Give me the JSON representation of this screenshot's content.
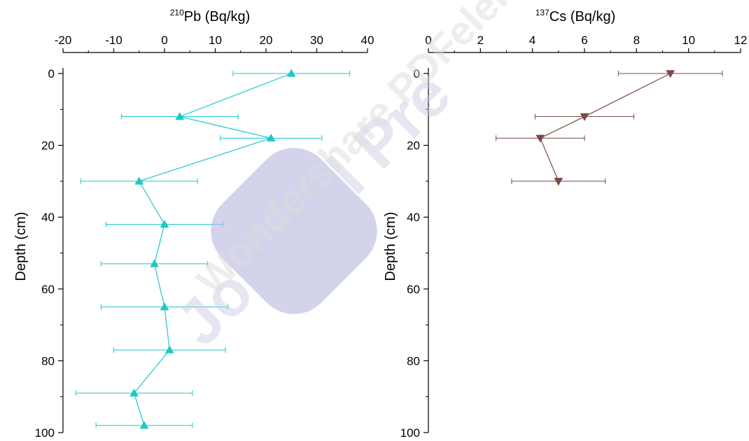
{
  "chart_data": [
    {
      "type": "scatter",
      "title": "",
      "xlabel_sup": "210",
      "xlabel": "Pb (Bq/kg)",
      "ylabel": "Depth (cm)",
      "xlim": [
        -20,
        40
      ],
      "ylim": [
        0,
        100
      ],
      "y_inverted": true,
      "x_axis_position": "top",
      "x_ticks": [
        -20,
        -10,
        0,
        10,
        20,
        30,
        40
      ],
      "y_ticks": [
        0,
        20,
        40,
        60,
        80,
        100
      ],
      "grid": false,
      "color": "#1ec8c8",
      "marker": "triangle-up",
      "connected": true,
      "series": [
        {
          "x": [
            25,
            3,
            21,
            -5,
            0,
            -2,
            0,
            1,
            -6,
            -4
          ],
          "y": [
            0,
            12,
            18,
            30,
            42,
            53,
            65,
            77,
            89,
            98
          ],
          "x_error": [
            11.5,
            11.5,
            10,
            11.5,
            11.5,
            10.5,
            12.5,
            11,
            11.5,
            9.5
          ]
        }
      ]
    },
    {
      "type": "scatter",
      "title": "",
      "xlabel_sup": "137",
      "xlabel": "Cs (Bq/kg)",
      "ylabel": "Depth (cm)",
      "xlim": [
        0,
        12
      ],
      "ylim": [
        0,
        100
      ],
      "y_inverted": true,
      "x_axis_position": "top",
      "x_ticks": [
        0,
        2,
        4,
        6,
        8,
        10,
        12
      ],
      "y_ticks": [
        0,
        20,
        40,
        60,
        80,
        100
      ],
      "grid": false,
      "color": "#7a4a48",
      "marker": "triangle-down",
      "connected": true,
      "series": [
        {
          "x": [
            9.3,
            6,
            4.3,
            5
          ],
          "y": [
            0,
            12,
            18,
            30
          ],
          "x_error": [
            2,
            1.9,
            1.7,
            1.8
          ]
        }
      ]
    }
  ],
  "watermark": {
    "text_main": "Journal Pre",
    "text_secondary": "Wondershare PDFelement",
    "color_main": "#c9c9e6",
    "color_secondary": "#d9d9d9"
  }
}
